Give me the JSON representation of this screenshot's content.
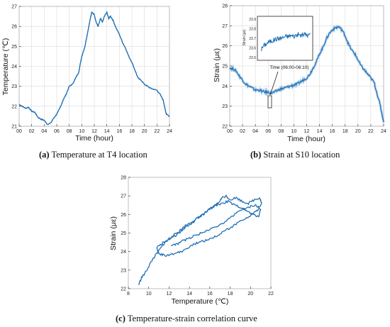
{
  "colors": {
    "series": "#1f6fb4",
    "axis": "#222222",
    "grid": "#d9d9d9",
    "frame": "#b0b0b0"
  },
  "chart_data": [
    {
      "id": "a",
      "type": "line",
      "xlabel": "Time (hour)",
      "ylabel": "Temperature (℃)",
      "xlim": [
        0,
        24
      ],
      "ylim": [
        21,
        27
      ],
      "xticks": [
        "00",
        "02",
        "04",
        "06",
        "08",
        "10",
        "12",
        "14",
        "16",
        "18",
        "20",
        "22",
        "24"
      ],
      "yticks": [
        "21",
        "22",
        "23",
        "24",
        "25",
        "26",
        "27"
      ],
      "grid": true,
      "caption": {
        "tag": "(a)",
        "text": " Temperature at T4 location"
      },
      "series": [
        {
          "x": [
            0,
            0.5,
            1,
            1.5,
            2,
            2.5,
            3,
            3.5,
            4,
            4.5,
            5,
            5.5,
            6,
            6.5,
            7,
            7.5,
            8,
            8.5,
            9,
            9.5,
            10,
            10.5,
            11,
            11.3,
            11.6,
            12,
            12.3,
            12.6,
            13,
            13.3,
            13.6,
            14,
            14.3,
            14.6,
            15,
            15.5,
            16,
            16.5,
            17,
            17.5,
            18,
            18.5,
            19,
            19.5,
            20,
            20.5,
            21,
            21.5,
            22,
            22.5,
            23,
            23.5,
            24
          ],
          "y": [
            22.1,
            22.0,
            21.9,
            21.95,
            21.75,
            21.7,
            21.45,
            21.35,
            21.3,
            21.1,
            21.15,
            21.4,
            21.6,
            21.9,
            22.3,
            22.6,
            23.0,
            23.1,
            23.4,
            23.7,
            24.5,
            25.0,
            25.8,
            26.3,
            26.7,
            26.6,
            26.2,
            26.0,
            26.4,
            26.2,
            26.5,
            26.7,
            26.4,
            26.5,
            26.3,
            25.9,
            25.6,
            25.2,
            24.9,
            24.5,
            24.2,
            23.8,
            23.4,
            23.3,
            23.1,
            23.0,
            22.9,
            22.85,
            22.8,
            22.6,
            22.3,
            21.6,
            21.5
          ]
        }
      ]
    },
    {
      "id": "b",
      "type": "line",
      "xlabel": "Time (hour)",
      "ylabel": "Strain (με)",
      "xlim": [
        0,
        24
      ],
      "ylim": [
        22,
        28
      ],
      "xticks": [
        "00",
        "02",
        "04",
        "06",
        "08",
        "10",
        "12",
        "14",
        "16",
        "18",
        "20",
        "22",
        "24"
      ],
      "yticks": [
        "22",
        "23",
        "24",
        "25",
        "26",
        "27",
        "28"
      ],
      "grid": true,
      "caption": {
        "tag": "(b)",
        "text": " Strain at S10 location"
      },
      "series": [
        {
          "x": [
            0,
            0.5,
            1,
            1.5,
            2,
            2.5,
            3,
            3.5,
            4,
            4.5,
            5,
            5.5,
            6,
            6.5,
            7,
            7.5,
            8,
            8.5,
            9,
            9.5,
            10,
            10.5,
            11,
            11.5,
            12,
            12.5,
            13,
            13.5,
            14,
            14.5,
            15,
            15.5,
            16,
            16.5,
            17,
            17.5,
            18,
            18.5,
            19,
            19.5,
            20,
            20.5,
            21,
            21.5,
            22,
            22.5,
            23,
            23.5,
            24
          ],
          "y": [
            24.9,
            24.85,
            24.75,
            24.5,
            24.3,
            24.1,
            24.0,
            23.9,
            23.8,
            23.8,
            23.75,
            23.7,
            23.7,
            23.65,
            23.7,
            23.8,
            23.85,
            23.9,
            23.95,
            24.0,
            24.05,
            24.1,
            24.2,
            24.3,
            24.4,
            24.6,
            24.9,
            25.2,
            25.6,
            25.9,
            26.3,
            26.6,
            26.8,
            26.9,
            26.95,
            26.8,
            26.5,
            26.1,
            25.8,
            25.6,
            25.3,
            25.0,
            24.8,
            24.6,
            24.4,
            24.2,
            23.6,
            23.0,
            22.2
          ]
        }
      ],
      "inset": {
        "xlabel": "Time (06:00-06:10)",
        "ylabel": "Strain (με)",
        "ylim": [
          23.5,
          23.9
        ],
        "yticks": [
          "23.5",
          "23.6",
          "23.7",
          "23.8",
          "23.9"
        ],
        "x": [
          0,
          1,
          2,
          3,
          4,
          5,
          6,
          7,
          8,
          9,
          10,
          11,
          12,
          13,
          14,
          15,
          16,
          17,
          18,
          19,
          20
        ],
        "y": [
          23.58,
          23.62,
          23.64,
          23.66,
          23.67,
          23.68,
          23.69,
          23.7,
          23.7,
          23.71,
          23.72,
          23.72,
          23.73,
          23.72,
          23.73,
          23.74,
          23.73,
          23.74,
          23.74,
          23.73,
          23.74
        ]
      }
    },
    {
      "id": "c",
      "type": "line",
      "xlabel": "Temperature (℃)",
      "ylabel": "Strain (με)",
      "xlim": [
        8,
        22
      ],
      "ylim": [
        22,
        28
      ],
      "xticks": [
        "8",
        "10",
        "12",
        "14",
        "16",
        "18",
        "20",
        "22"
      ],
      "yticks": [
        "22",
        "23",
        "24",
        "25",
        "26",
        "27",
        "28"
      ],
      "grid": false,
      "caption": {
        "tag": "(c)",
        "text": " Temperature-strain correlation curve"
      },
      "series": [
        {
          "x": [
            9.0,
            9.3,
            9.6,
            10.0,
            10.4,
            10.8,
            11.2,
            11.6,
            12.0,
            12.5,
            13.0,
            13.6,
            14.2,
            14.8,
            15.3,
            15.8,
            16.3,
            16.8,
            17.2,
            17.6,
            18.0,
            18.6,
            19.2,
            19.8,
            20.4,
            20.9,
            21.1,
            20.8,
            20.2,
            19.5,
            18.8,
            18.1,
            17.4,
            16.8,
            16.2,
            15.6,
            15.0,
            14.4,
            13.8,
            13.2,
            12.6,
            12.0,
            11.5,
            11.0,
            10.8,
            11.2,
            11.8,
            12.4,
            13.0,
            13.6,
            14.2,
            14.8,
            15.4,
            16.0,
            16.6,
            17.2,
            17.8,
            18.4,
            19.0,
            19.6,
            20.2,
            20.8,
            21.0,
            20.5,
            19.8,
            19.0,
            18.2,
            17.5,
            16.8,
            16.0,
            15.3,
            14.6,
            14.0,
            13.4,
            12.8,
            12.2
          ],
          "y": [
            22.2,
            22.6,
            22.8,
            23.2,
            23.6,
            23.9,
            24.2,
            24.5,
            24.7,
            24.9,
            25.1,
            25.4,
            25.6,
            25.8,
            26.0,
            26.2,
            26.4,
            26.6,
            26.9,
            27.0,
            26.8,
            26.9,
            26.7,
            26.6,
            26.8,
            26.9,
            26.6,
            26.3,
            26.0,
            25.8,
            25.6,
            25.3,
            25.1,
            24.9,
            24.7,
            24.6,
            24.5,
            24.4,
            24.2,
            24.0,
            23.9,
            23.8,
            23.8,
            23.9,
            24.2,
            24.4,
            24.6,
            24.8,
            25.0,
            25.3,
            25.5,
            25.8,
            26.0,
            26.3,
            26.5,
            26.6,
            26.7,
            26.5,
            26.4,
            26.2,
            26.0,
            25.9,
            26.3,
            26.5,
            26.4,
            26.2,
            25.9,
            25.6,
            25.4,
            25.2,
            25.0,
            24.9,
            24.7,
            24.6,
            24.4,
            24.3
          ]
        }
      ]
    }
  ]
}
